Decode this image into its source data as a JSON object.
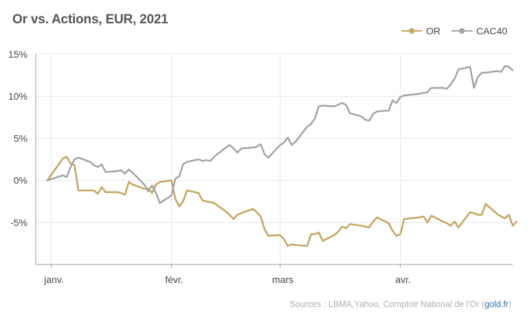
{
  "chart_data": {
    "type": "line",
    "title": "Or vs. Actions, EUR, 2021",
    "xlabel": "",
    "ylabel": "",
    "ylim": [
      -10,
      15
    ],
    "yticks": [
      -5,
      0,
      5,
      10,
      15
    ],
    "ytick_labels": [
      "-5%",
      "0%",
      "5%",
      "10%",
      "15%"
    ],
    "x_tick_labels": [
      "janv.",
      "févr.",
      "mars",
      "avr."
    ],
    "x_tick_dates": [
      "2021-01-01",
      "2021-02-01",
      "2021-03-01",
      "2021-04-01"
    ],
    "xlim": [
      "2020-12-28",
      "2021-04-30"
    ],
    "grid": true,
    "legend_position": "top-right",
    "source_text": "Sources : LBMA,Yahoo, Comptoir National de l'Or (",
    "source_link": "gold.fr",
    "source_close": ")",
    "series": [
      {
        "name": "OR",
        "color": "#c4a45a",
        "points": [
          [
            "2020-12-31",
            0.0
          ],
          [
            "2021-01-04",
            2.6
          ],
          [
            "2021-01-05",
            2.8
          ],
          [
            "2021-01-06",
            2.0
          ],
          [
            "2021-01-07",
            1.8
          ],
          [
            "2021-01-08",
            -1.2
          ],
          [
            "2021-01-11",
            -1.2
          ],
          [
            "2021-01-12",
            -1.2
          ],
          [
            "2021-01-13",
            -1.6
          ],
          [
            "2021-01-14",
            -0.8
          ],
          [
            "2021-01-15",
            -1.4
          ],
          [
            "2021-01-18",
            -1.4
          ],
          [
            "2021-01-19",
            -1.5
          ],
          [
            "2021-01-20",
            -1.7
          ],
          [
            "2021-01-21",
            -0.2
          ],
          [
            "2021-01-22",
            -0.5
          ],
          [
            "2021-01-25",
            -1.0
          ],
          [
            "2021-01-26",
            -1.0
          ],
          [
            "2021-01-27",
            -1.5
          ],
          [
            "2021-01-28",
            -0.5
          ],
          [
            "2021-01-29",
            -0.2
          ],
          [
            "2021-02-01",
            0.0
          ],
          [
            "2021-02-02",
            -2.2
          ],
          [
            "2021-02-03",
            -3.1
          ],
          [
            "2021-02-04",
            -2.5
          ],
          [
            "2021-02-05",
            -1.2
          ],
          [
            "2021-02-08",
            -1.5
          ],
          [
            "2021-02-09",
            -2.4
          ],
          [
            "2021-02-10",
            -2.5
          ],
          [
            "2021-02-11",
            -2.6
          ],
          [
            "2021-02-12",
            -2.7
          ],
          [
            "2021-02-15",
            -3.7
          ],
          [
            "2021-02-16",
            -4.1
          ],
          [
            "2021-02-17",
            -4.6
          ],
          [
            "2021-02-18",
            -4.1
          ],
          [
            "2021-02-19",
            -3.9
          ],
          [
            "2021-02-22",
            -3.4
          ],
          [
            "2021-02-23",
            -3.8
          ],
          [
            "2021-02-24",
            -4.3
          ],
          [
            "2021-02-25",
            -5.8
          ],
          [
            "2021-02-26",
            -6.6
          ],
          [
            "2021-03-01",
            -6.5
          ],
          [
            "2021-03-02",
            -7.0
          ],
          [
            "2021-03-03",
            -7.8
          ],
          [
            "2021-03-04",
            -7.6
          ],
          [
            "2021-03-05",
            -7.7
          ],
          [
            "2021-03-08",
            -7.8
          ],
          [
            "2021-03-09",
            -6.4
          ],
          [
            "2021-03-10",
            -6.4
          ],
          [
            "2021-03-11",
            -6.2
          ],
          [
            "2021-03-12",
            -7.2
          ],
          [
            "2021-03-15",
            -6.5
          ],
          [
            "2021-03-16",
            -6.1
          ],
          [
            "2021-03-17",
            -5.5
          ],
          [
            "2021-03-18",
            -5.7
          ],
          [
            "2021-03-19",
            -5.2
          ],
          [
            "2021-03-22",
            -5.4
          ],
          [
            "2021-03-23",
            -5.5
          ],
          [
            "2021-03-24",
            -5.6
          ],
          [
            "2021-03-25",
            -4.9
          ],
          [
            "2021-03-26",
            -4.4
          ],
          [
            "2021-03-29",
            -5.1
          ],
          [
            "2021-03-30",
            -6.0
          ],
          [
            "2021-03-31",
            -6.6
          ],
          [
            "2021-04-01",
            -6.4
          ],
          [
            "2021-04-02",
            -4.6
          ],
          [
            "2021-04-06",
            -4.4
          ],
          [
            "2021-04-07",
            -4.3
          ],
          [
            "2021-04-08",
            -5.0
          ],
          [
            "2021-04-09",
            -4.2
          ],
          [
            "2021-04-12",
            -4.9
          ],
          [
            "2021-04-13",
            -5.1
          ],
          [
            "2021-04-14",
            -5.4
          ],
          [
            "2021-04-15",
            -4.9
          ],
          [
            "2021-04-16",
            -5.6
          ],
          [
            "2021-04-19",
            -3.8
          ],
          [
            "2021-04-20",
            -3.9
          ],
          [
            "2021-04-21",
            -4.1
          ],
          [
            "2021-04-22",
            -4.1
          ],
          [
            "2021-04-23",
            -2.8
          ],
          [
            "2021-04-26",
            -4.0
          ],
          [
            "2021-04-27",
            -4.3
          ],
          [
            "2021-04-28",
            -4.5
          ],
          [
            "2021-04-29",
            -4.1
          ],
          [
            "2021-04-30",
            -5.4
          ],
          [
            "2021-05-01",
            -4.9
          ]
        ]
      },
      {
        "name": "CAC40",
        "color": "#a3a3a3",
        "points": [
          [
            "2020-12-31",
            0.0
          ],
          [
            "2021-01-04",
            0.6
          ],
          [
            "2021-01-05",
            0.4
          ],
          [
            "2021-01-06",
            1.6
          ],
          [
            "2021-01-07",
            2.5
          ],
          [
            "2021-01-08",
            2.7
          ],
          [
            "2021-01-11",
            2.2
          ],
          [
            "2021-01-12",
            1.8
          ],
          [
            "2021-01-13",
            1.6
          ],
          [
            "2021-01-14",
            1.9
          ],
          [
            "2021-01-15",
            1.0
          ],
          [
            "2021-01-18",
            1.1
          ],
          [
            "2021-01-19",
            1.2
          ],
          [
            "2021-01-20",
            0.8
          ],
          [
            "2021-01-21",
            1.3
          ],
          [
            "2021-01-22",
            0.9
          ],
          [
            "2021-01-25",
            -0.5
          ],
          [
            "2021-01-26",
            -1.3
          ],
          [
            "2021-01-27",
            -0.6
          ],
          [
            "2021-01-28",
            -1.5
          ],
          [
            "2021-01-29",
            -2.7
          ],
          [
            "2021-02-01",
            -1.8
          ],
          [
            "2021-02-02",
            0.2
          ],
          [
            "2021-02-03",
            0.5
          ],
          [
            "2021-02-04",
            1.9
          ],
          [
            "2021-02-05",
            2.2
          ],
          [
            "2021-02-08",
            2.5
          ],
          [
            "2021-02-09",
            2.3
          ],
          [
            "2021-02-10",
            2.4
          ],
          [
            "2021-02-11",
            2.3
          ],
          [
            "2021-02-12",
            2.8
          ],
          [
            "2021-02-15",
            3.9
          ],
          [
            "2021-02-16",
            4.2
          ],
          [
            "2021-02-17",
            3.8
          ],
          [
            "2021-02-18",
            3.3
          ],
          [
            "2021-02-19",
            3.8
          ],
          [
            "2021-02-22",
            3.9
          ],
          [
            "2021-02-23",
            4.0
          ],
          [
            "2021-02-24",
            4.3
          ],
          [
            "2021-02-25",
            3.1
          ],
          [
            "2021-02-26",
            2.7
          ],
          [
            "2021-03-01",
            4.2
          ],
          [
            "2021-03-02",
            4.5
          ],
          [
            "2021-03-03",
            5.1
          ],
          [
            "2021-03-04",
            4.2
          ],
          [
            "2021-03-05",
            4.6
          ],
          [
            "2021-03-08",
            6.4
          ],
          [
            "2021-03-09",
            6.7
          ],
          [
            "2021-03-10",
            7.4
          ],
          [
            "2021-03-11",
            8.8
          ],
          [
            "2021-03-12",
            8.9
          ],
          [
            "2021-03-15",
            8.8
          ],
          [
            "2021-03-16",
            9.0
          ],
          [
            "2021-03-17",
            9.2
          ],
          [
            "2021-03-18",
            9.0
          ],
          [
            "2021-03-19",
            8.0
          ],
          [
            "2021-03-22",
            7.6
          ],
          [
            "2021-03-23",
            7.2
          ],
          [
            "2021-03-24",
            7.1
          ],
          [
            "2021-03-25",
            7.9
          ],
          [
            "2021-03-26",
            8.2
          ],
          [
            "2021-03-29",
            8.3
          ],
          [
            "2021-03-30",
            9.5
          ],
          [
            "2021-03-31",
            9.2
          ],
          [
            "2021-04-01",
            9.9
          ],
          [
            "2021-04-02",
            10.1
          ],
          [
            "2021-04-06",
            10.3
          ],
          [
            "2021-04-07",
            10.4
          ],
          [
            "2021-04-08",
            10.5
          ],
          [
            "2021-04-09",
            11.0
          ],
          [
            "2021-04-12",
            11.0
          ],
          [
            "2021-04-13",
            10.9
          ],
          [
            "2021-04-14",
            11.4
          ],
          [
            "2021-04-15",
            12.1
          ],
          [
            "2021-04-16",
            13.2
          ],
          [
            "2021-04-19",
            13.5
          ],
          [
            "2021-04-20",
            11.0
          ],
          [
            "2021-04-21",
            12.3
          ],
          [
            "2021-04-22",
            12.8
          ],
          [
            "2021-04-23",
            12.8
          ],
          [
            "2021-04-26",
            13.0
          ],
          [
            "2021-04-27",
            12.9
          ],
          [
            "2021-04-28",
            13.6
          ],
          [
            "2021-04-29",
            13.5
          ],
          [
            "2021-04-30",
            13.1
          ]
        ]
      }
    ]
  }
}
